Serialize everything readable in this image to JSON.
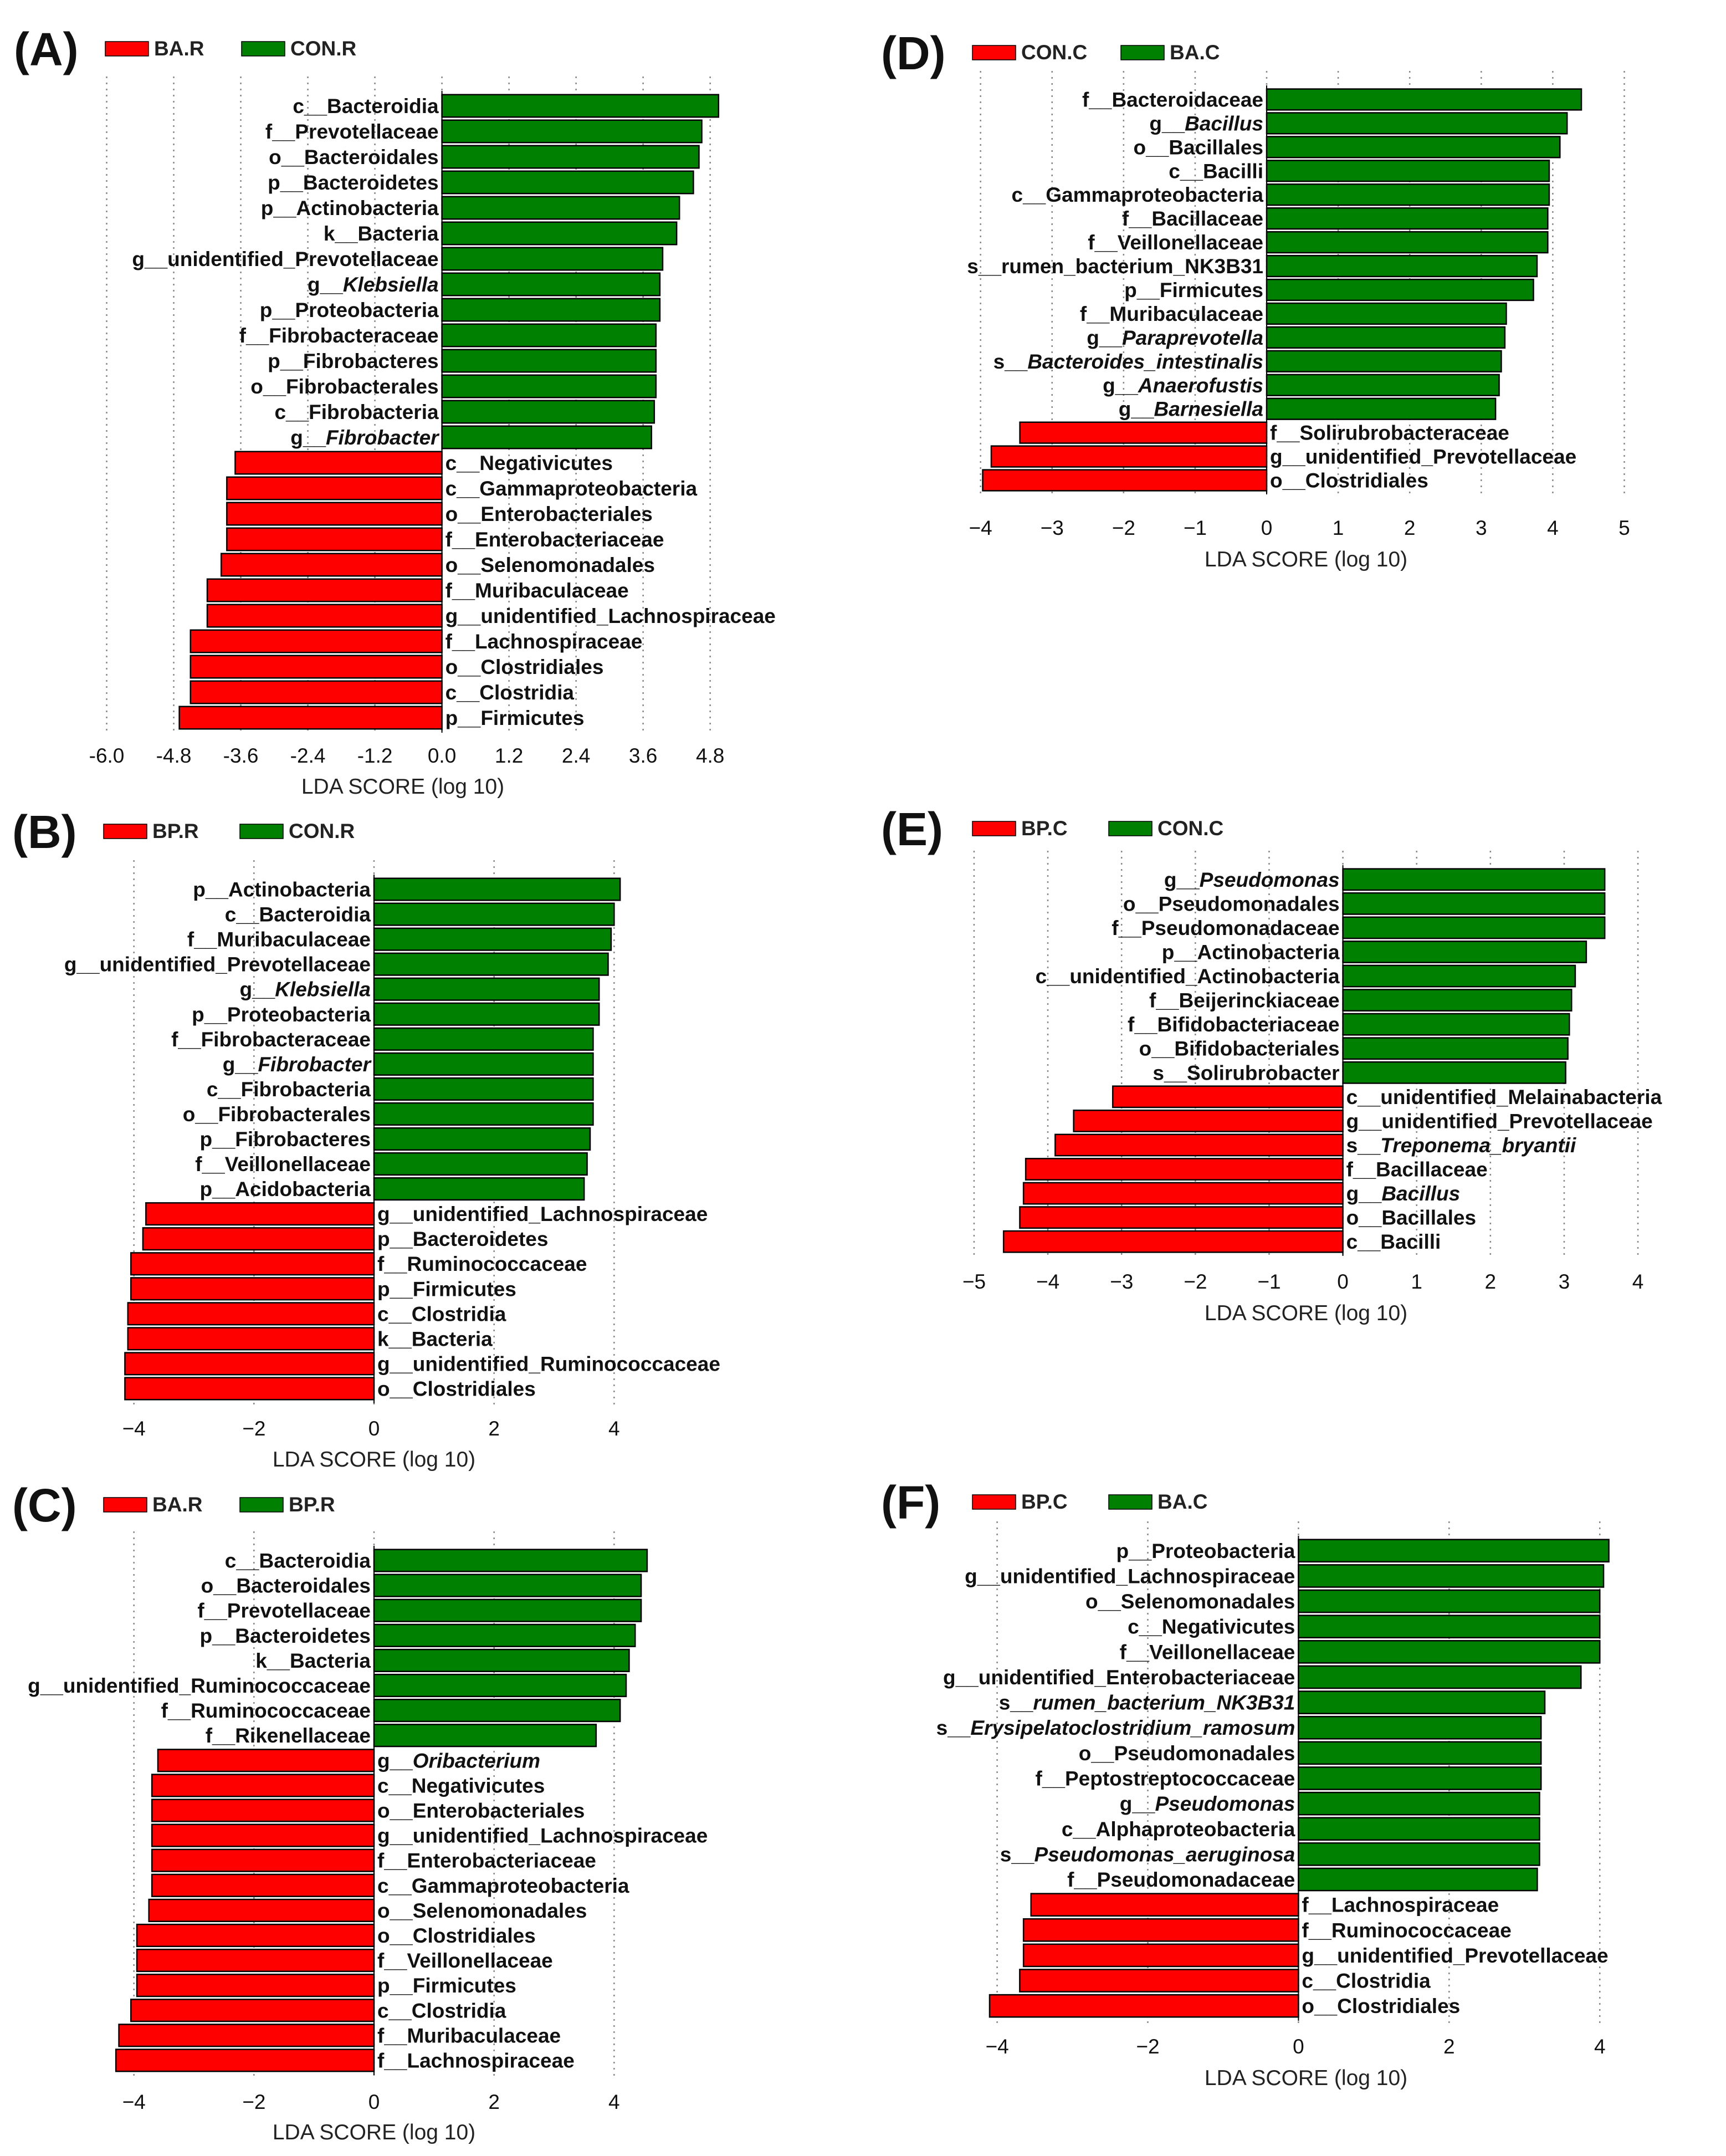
{
  "colors": {
    "group1": "#ff0000",
    "group2": "#008000",
    "grid": "#888888",
    "text": "#111111"
  },
  "chart_data": [
    {
      "panel": "(A)",
      "type": "bar",
      "orientation": "horizontal",
      "legend": [
        "BA.R",
        "CON.R"
      ],
      "xlabel": "LDA SCORE (log 10)",
      "xlim": [
        -6.6,
        5.2
      ],
      "xticks": [
        "-6.0",
        "-4.8",
        "-3.6",
        "-2.4",
        "-1.2",
        "0.0",
        "1.2",
        "2.4",
        "3.6",
        "4.8"
      ],
      "bars": [
        {
          "label": "c__Bacteroidia",
          "value": 4.95
        },
        {
          "label": "f__Prevotellaceae",
          "value": 4.65
        },
        {
          "label": "o__Bacteroidales",
          "value": 4.6
        },
        {
          "label": "p__Bacteroidetes",
          "value": 4.5
        },
        {
          "label": "p__Actinobacteria",
          "value": 4.25
        },
        {
          "label": "k__Bacteria",
          "value": 4.2
        },
        {
          "label": "g__unidentified_Prevotellaceae",
          "value": 3.95
        },
        {
          "label": "g__Klebsiella",
          "value": 3.9,
          "italic": true
        },
        {
          "label": "p__Proteobacteria",
          "value": 3.9
        },
        {
          "label": "f__Fibrobacteraceae",
          "value": 3.83
        },
        {
          "label": "p__Fibrobacteres",
          "value": 3.83
        },
        {
          "label": "o__Fibrobacterales",
          "value": 3.83
        },
        {
          "label": "c__Fibrobacteria",
          "value": 3.8
        },
        {
          "label": "g__Fibrobacter",
          "value": 3.75,
          "italic": true
        },
        {
          "label": "c__Negativicutes",
          "value": -3.7
        },
        {
          "label": "c__Gammaproteobacteria",
          "value": -3.85
        },
        {
          "label": "o__Enterobacteriales",
          "value": -3.85
        },
        {
          "label": "f__Enterobacteriaceae",
          "value": -3.85
        },
        {
          "label": "o__Selenomonadales",
          "value": -3.95
        },
        {
          "label": "f__Muribaculaceae",
          "value": -4.2
        },
        {
          "label": "g__unidentified_Lachnospiraceae",
          "value": -4.2
        },
        {
          "label": "f__Lachnospiraceae",
          "value": -4.5
        },
        {
          "label": "o__Clostridiales",
          "value": -4.5
        },
        {
          "label": "c__Clostridia",
          "value": -4.5
        },
        {
          "label": "p__Firmicutes",
          "value": -4.7
        }
      ]
    },
    {
      "panel": "(B)",
      "type": "bar",
      "orientation": "horizontal",
      "legend": [
        "BP.R",
        "CON.R"
      ],
      "xlabel": "LDA SCORE (log 10)",
      "xlim": [
        -4.8,
        4.8
      ],
      "xticks": [
        "−4",
        "−2",
        "0",
        "2",
        "4"
      ],
      "bars": [
        {
          "label": "p__Actinobacteria",
          "value": 4.1
        },
        {
          "label": "c__Bacteroidia",
          "value": 4.0
        },
        {
          "label": "f__Muribaculaceae",
          "value": 3.95
        },
        {
          "label": "g__unidentified_Prevotellaceae",
          "value": 3.9
        },
        {
          "label": "g__Klebsiella",
          "value": 3.75,
          "italic": true
        },
        {
          "label": "p__Proteobacteria",
          "value": 3.75
        },
        {
          "label": "f__Fibrobacteraceae",
          "value": 3.65
        },
        {
          "label": "g__Fibrobacter",
          "value": 3.65,
          "italic": true
        },
        {
          "label": "c__Fibrobacteria",
          "value": 3.65
        },
        {
          "label": "o__Fibrobacterales",
          "value": 3.65
        },
        {
          "label": "p__Fibrobacteres",
          "value": 3.6
        },
        {
          "label": "f__Veillonellaceae",
          "value": 3.55
        },
        {
          "label": "p__Acidobacteria",
          "value": 3.5
        },
        {
          "label": "g__unidentified_Lachnospiraceae",
          "value": -3.8
        },
        {
          "label": "p__Bacteroidetes",
          "value": -3.85
        },
        {
          "label": "f__Ruminococcaceae",
          "value": -4.05
        },
        {
          "label": "p__Firmicutes",
          "value": -4.05
        },
        {
          "label": "c__Clostridia",
          "value": -4.1
        },
        {
          "label": "k__Bacteria",
          "value": -4.1
        },
        {
          "label": "g__unidentified_Ruminococcaceae",
          "value": -4.15
        },
        {
          "label": "o__Clostridiales",
          "value": -4.15
        }
      ]
    },
    {
      "panel": "(C)",
      "type": "bar",
      "orientation": "horizontal",
      "legend": [
        "BA.R",
        "BP.R"
      ],
      "xlabel": "LDA SCORE (log 10)",
      "xlim": [
        -4.8,
        4.8
      ],
      "xticks": [
        "−4",
        "−2",
        "0",
        "2",
        "4"
      ],
      "bars": [
        {
          "label": "c__Bacteroidia",
          "value": 4.55
        },
        {
          "label": "o__Bacteroidales",
          "value": 4.45
        },
        {
          "label": "f__Prevotellaceae",
          "value": 4.45
        },
        {
          "label": "p__Bacteroidetes",
          "value": 4.35
        },
        {
          "label": "k__Bacteria",
          "value": 4.25
        },
        {
          "label": "g__unidentified_Ruminococcaceae",
          "value": 4.2
        },
        {
          "label": "f__Ruminococcaceae",
          "value": 4.1
        },
        {
          "label": "f__Rikenellaceae",
          "value": 3.7
        },
        {
          "label": "g__Oribacterium",
          "value": -3.6,
          "italic": true
        },
        {
          "label": "c__Negativicutes",
          "value": -3.7
        },
        {
          "label": "o__Enterobacteriales",
          "value": -3.7
        },
        {
          "label": "g__unidentified_Lachnospiraceae",
          "value": -3.7
        },
        {
          "label": "f__Enterobacteriaceae",
          "value": -3.7
        },
        {
          "label": "c__Gammaproteobacteria",
          "value": -3.7
        },
        {
          "label": "o__Selenomonadales",
          "value": -3.75
        },
        {
          "label": "o__Clostridiales",
          "value": -3.95
        },
        {
          "label": "f__Veillonellaceae",
          "value": -3.95
        },
        {
          "label": "p__Firmicutes",
          "value": -3.95
        },
        {
          "label": "c__Clostridia",
          "value": -4.05
        },
        {
          "label": "f__Muribaculaceae",
          "value": -4.25
        },
        {
          "label": "f__Lachnospiraceae",
          "value": -4.3
        }
      ]
    },
    {
      "panel": "(D)",
      "type": "bar",
      "orientation": "horizontal",
      "legend": [
        "CON.C",
        "BA.C"
      ],
      "xlabel": "LDA SCORE (log 10)",
      "xlim": [
        -4.4,
        5.5
      ],
      "xticks": [
        "−4",
        "−3",
        "−2",
        "−1",
        "0",
        "1",
        "2",
        "3",
        "4",
        "5"
      ],
      "bars": [
        {
          "label": "f__Bacteroidaceae",
          "value": 4.4
        },
        {
          "label": "g__Bacillus",
          "value": 4.2,
          "italic": true
        },
        {
          "label": "o__Bacillales",
          "value": 4.1
        },
        {
          "label": "c__Bacilli",
          "value": 3.95
        },
        {
          "label": "c__Gammaproteobacteria",
          "value": 3.95
        },
        {
          "label": "f__Bacillaceae",
          "value": 3.93
        },
        {
          "label": "f__Veillonellaceae",
          "value": 3.93
        },
        {
          "label": "s__rumen_bacterium_NK3B31",
          "value": 3.78
        },
        {
          "label": "p__Firmicutes",
          "value": 3.73
        },
        {
          "label": "f__Muribaculaceae",
          "value": 3.35
        },
        {
          "label": "g__Paraprevotella",
          "value": 3.33,
          "italic": true
        },
        {
          "label": "s__Bacteroides_intestinalis",
          "value": 3.28,
          "italic": true
        },
        {
          "label": "g__Anaerofustis",
          "value": 3.25,
          "italic": true
        },
        {
          "label": "g__Barnesiella",
          "value": 3.2,
          "italic": true
        },
        {
          "label": "f__Solirubrobacteraceae",
          "value": -3.45
        },
        {
          "label": "g__unidentified_Prevotellaceae",
          "value": -3.85
        },
        {
          "label": "o__Clostridiales",
          "value": -3.97
        }
      ]
    },
    {
      "panel": "(E)",
      "type": "bar",
      "orientation": "horizontal",
      "legend": [
        "BP.C",
        "CON.C"
      ],
      "xlabel": "LDA SCORE (log 10)",
      "xlim": [
        -5.3,
        4.3
      ],
      "xticks": [
        "−5",
        "−4",
        "−3",
        "−2",
        "−1",
        "0",
        "1",
        "2",
        "3",
        "4"
      ],
      "bars": [
        {
          "label": "g__Pseudomonas",
          "value": 3.55,
          "italic": true
        },
        {
          "label": "o__Pseudomonadales",
          "value": 3.55
        },
        {
          "label": "f__Pseudomonadaceae",
          "value": 3.55
        },
        {
          "label": "p__Actinobacteria",
          "value": 3.3
        },
        {
          "label": "c__unidentified_Actinobacteria",
          "value": 3.15
        },
        {
          "label": "f__Beijerinckiaceae",
          "value": 3.1
        },
        {
          "label": "f__Bifidobacteriaceae",
          "value": 3.07
        },
        {
          "label": "o__Bifidobacteriales",
          "value": 3.05
        },
        {
          "label": "s__Solirubrobacter",
          "value": 3.02
        },
        {
          "label": "c__unidentified_Melainabacteria",
          "value": -3.12
        },
        {
          "label": "g__unidentified_Prevotellaceae",
          "value": -3.65
        },
        {
          "label": "s__Treponema_bryantii",
          "value": -3.9,
          "italic": true
        },
        {
          "label": "f__Bacillaceae",
          "value": -4.3
        },
        {
          "label": "g__Bacillus",
          "value": -4.33,
          "italic": true
        },
        {
          "label": "o__Bacillales",
          "value": -4.38
        },
        {
          "label": "c__Bacilli",
          "value": -4.6
        }
      ]
    },
    {
      "panel": "(F)",
      "type": "bar",
      "orientation": "horizontal",
      "legend": [
        "BP.C",
        "BA.C"
      ],
      "xlabel": "LDA SCORE (log 10)",
      "xlim": [
        -4.6,
        4.8
      ],
      "xticks": [
        "−4",
        "−2",
        "0",
        "2",
        "4"
      ],
      "bars": [
        {
          "label": "p__Proteobacteria",
          "value": 4.12
        },
        {
          "label": "g__unidentified_Lachnospiraceae",
          "value": 4.05
        },
        {
          "label": "o__Selenomonadales",
          "value": 4.0
        },
        {
          "label": "c__Negativicutes",
          "value": 4.0
        },
        {
          "label": "f__Veillonellaceae",
          "value": 4.0
        },
        {
          "label": "g__unidentified_Enterobacteriaceae",
          "value": 3.75
        },
        {
          "label": "s__rumen_bacterium_NK3B31",
          "value": 3.27,
          "italic": true
        },
        {
          "label": "s__Erysipelatoclostridium_ramosum",
          "value": 3.22,
          "italic": true
        },
        {
          "label": "o__Pseudomonadales",
          "value": 3.22
        },
        {
          "label": "f__Peptostreptococcaceae",
          "value": 3.22
        },
        {
          "label": "g__Pseudomonas",
          "value": 3.2,
          "italic": true
        },
        {
          "label": "c__Alphaproteobacteria",
          "value": 3.2
        },
        {
          "label": "s__Pseudomonas_aeruginosa",
          "value": 3.2,
          "italic": true
        },
        {
          "label": "f__Pseudomonadaceae",
          "value": 3.17
        },
        {
          "label": "f__Lachnospiraceae",
          "value": -3.55
        },
        {
          "label": "f__Ruminococcaceae",
          "value": -3.65
        },
        {
          "label": "g__unidentified_Prevotellaceae",
          "value": -3.65
        },
        {
          "label": "c__Clostridia",
          "value": -3.7
        },
        {
          "label": "o__Clostridiales",
          "value": -4.1
        }
      ]
    }
  ]
}
